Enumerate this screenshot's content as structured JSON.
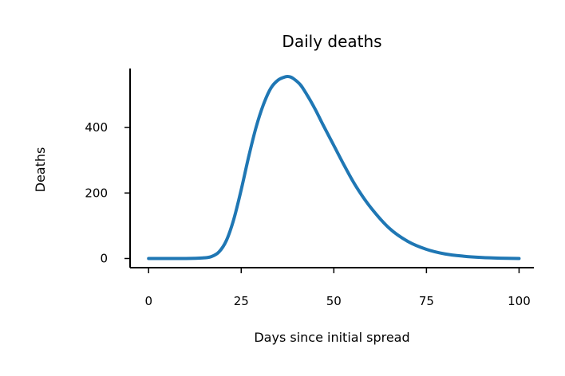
{
  "chart_data": {
    "type": "line",
    "title": "Daily deaths",
    "xlabel": "Days since initial spread",
    "ylabel": "Deaths",
    "xlim": [
      -5,
      104
    ],
    "ylim": [
      -28,
      580
    ],
    "xticks": [
      0,
      25,
      50,
      75,
      100
    ],
    "yticks": [
      0,
      200,
      400
    ],
    "xtick_labels": [
      "0",
      "25",
      "50",
      "75",
      "100"
    ],
    "ytick_labels": [
      "0",
      "200",
      "400"
    ],
    "grid": false,
    "legend": "none",
    "series": [
      {
        "color": "#1f77b4",
        "x": [
          0,
          10,
          15,
          17,
          19,
          21,
          23,
          25,
          27,
          29,
          31,
          33,
          35,
          37,
          38,
          39,
          41,
          43,
          45,
          47,
          50,
          53,
          56,
          60,
          65,
          70,
          75,
          80,
          85,
          90,
          95,
          100
        ],
        "y": [
          0,
          0,
          2,
          6,
          20,
          55,
          120,
          210,
          310,
          400,
          470,
          520,
          545,
          555,
          555,
          550,
          530,
          495,
          455,
          410,
          345,
          280,
          220,
          155,
          92,
          52,
          28,
          14,
          7,
          3,
          1,
          0
        ]
      }
    ]
  }
}
